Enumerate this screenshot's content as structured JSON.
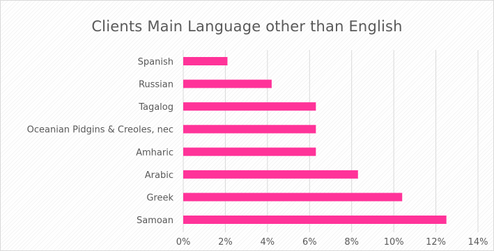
{
  "chart_data": {
    "type": "bar",
    "orientation": "horizontal",
    "title": "Clients Main Language other than English",
    "xlabel": "",
    "ylabel": "",
    "categories": [
      "Spanish",
      "Russian",
      "Tagalog",
      "Oceanian Pidgins & Creoles, nec",
      "Amharic",
      "Arabic",
      "Greek",
      "Samoan"
    ],
    "values": [
      2.1,
      4.2,
      6.3,
      6.3,
      6.3,
      8.3,
      10.4,
      12.5
    ],
    "xlim": [
      0,
      14
    ],
    "xticks": [
      0,
      2,
      4,
      6,
      8,
      10,
      12,
      14
    ],
    "tick_suffix": "%",
    "grid": "vertical",
    "legend": "none",
    "bar_color": "#ff3399",
    "grid_color": "#d9d9d9"
  }
}
